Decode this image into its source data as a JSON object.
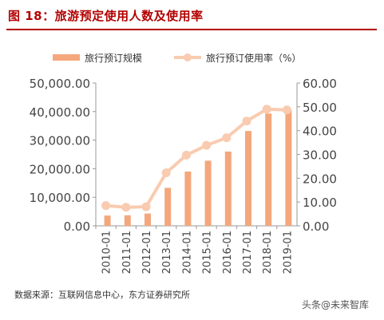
{
  "header": {
    "title": "图 18：旅游预定使用人数及使用率"
  },
  "footer": {
    "source": "数据来源：互联网信息中心，东方证券研究所",
    "watermark": "头条@未来智库"
  },
  "colors": {
    "title_red": "#b30000",
    "bar": "#f4a77c",
    "line": "#f9cbb0",
    "axis_text": "#444444"
  },
  "chart_data": {
    "type": "bar+line",
    "categories": [
      "2010-01",
      "2011-01",
      "2012-01",
      "2013-01",
      "2014-01",
      "2015-01",
      "2016-01",
      "2017-01",
      "2018-01",
      "2019-01"
    ],
    "series": [
      {
        "name": "旅行预订规模",
        "type": "bar",
        "axis": "left",
        "values": [
          3600,
          3700,
          4300,
          13300,
          19000,
          22800,
          26000,
          33200,
          39300,
          40400
        ]
      },
      {
        "name": "旅行预订使用率（%）",
        "type": "line",
        "axis": "right",
        "values": [
          8.5,
          7.8,
          8.0,
          22.3,
          29.7,
          33.8,
          37.0,
          44.0,
          49.0,
          48.7
        ]
      }
    ],
    "y_left": {
      "ylim": [
        0,
        50000
      ],
      "ticks": [
        "0.00",
        "10,000.00",
        "20,000.00",
        "30,000.00",
        "40,000.00",
        "50,000.00"
      ]
    },
    "y_right": {
      "ylim": [
        0,
        60
      ],
      "ticks": [
        "0.00",
        "10.00",
        "20.00",
        "30.00",
        "40.00",
        "50.00",
        "60.00"
      ]
    },
    "legend_position": "top",
    "grid": false
  }
}
